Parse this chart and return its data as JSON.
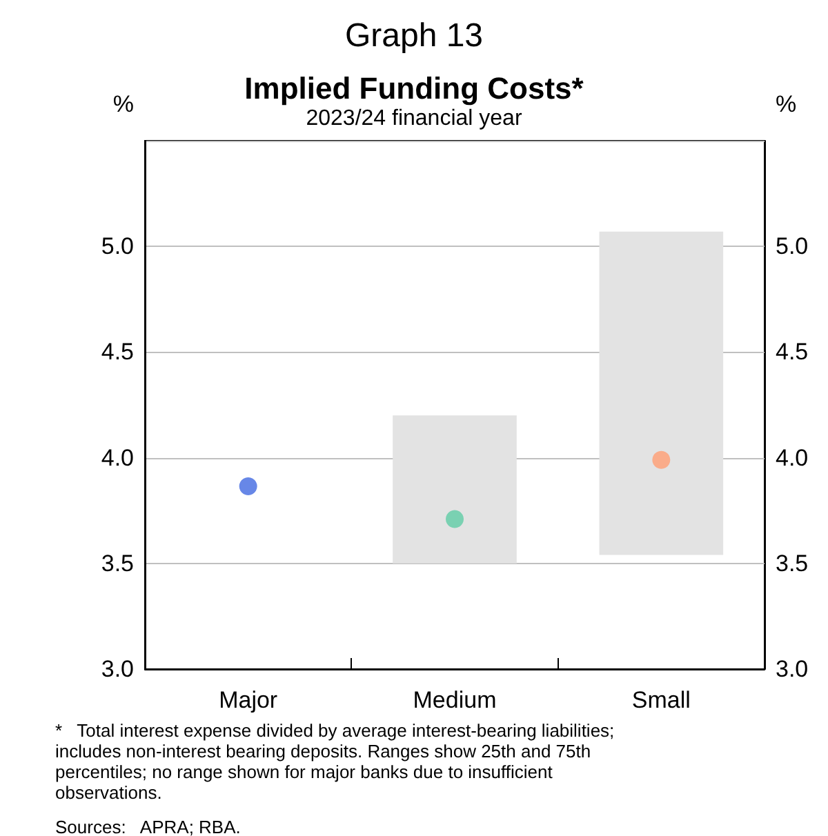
{
  "chart_data": {
    "type": "bar",
    "title": "Implied Funding Costs*",
    "subtitle": "2023/24 financial year",
    "annotations": [
      "Graph 13",
      "*   Total interest expense divided by average interest-bearing liabilities; includes non-interest bearing deposits. Ranges show 25th and 75th percentiles; no range shown for major banks due to insufficient observations.",
      "Sources:   APRA; RBA."
    ],
    "ylabel": "%",
    "y2label": "%",
    "categories": [
      "Major",
      "Medium",
      "Small"
    ],
    "series": [
      {
        "color": "#e3e3e3",
        "base": [
          null,
          3.5,
          3.54
        ],
        "values": [
          null,
          0.7,
          1.53
        ]
      },
      {
        "type": "scatter",
        "x": [
          "Major",
          "Medium",
          "Small"
        ],
        "values": [
          3.865,
          3.71,
          3.99
        ],
        "colors": [
          "#4169e1",
          "#5fcca5",
          "#ff9e73"
        ]
      }
    ],
    "ylim": [
      3,
      5.5
    ],
    "yticks": [
      {
        "value": 3,
        "label": "3.0"
      },
      3.5,
      {
        "value": 4,
        "label": "4.0"
      },
      4.5,
      {
        "value": 5,
        "label": "5.0"
      }
    ],
    "y2lim": [
      3,
      5.5
    ],
    "y2ticks": [
      {
        "value": 3,
        "label": "3.0"
      },
      3.5,
      {
        "value": 4,
        "label": "4.0"
      },
      4.5,
      {
        "value": 5,
        "label": "5.0"
      }
    ],
    "grid": "y",
    "marker": "circle"
  }
}
